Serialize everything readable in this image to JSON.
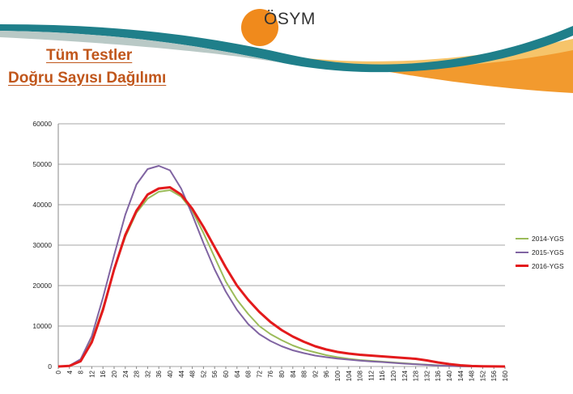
{
  "header": {
    "logo_text": "ÖSYM",
    "title_line1": "Tüm Testler",
    "title_line2": "Doğru Sayısı Dağılımı"
  },
  "colors": {
    "title": "#c0561b",
    "logo_orange": "#f08a1c",
    "swoosh_teal": "#1f7f8a",
    "swoosh_orange": "#f29a2e",
    "grid": "#a6a6a6"
  },
  "chart_data": {
    "type": "line",
    "ylim": [
      0,
      60000
    ],
    "yticks": [
      0,
      10000,
      20000,
      30000,
      40000,
      50000,
      60000
    ],
    "xlim": [
      0,
      160
    ],
    "xticks": [
      0,
      4,
      8,
      12,
      16,
      20,
      24,
      28,
      32,
      36,
      40,
      44,
      48,
      52,
      56,
      60,
      64,
      68,
      72,
      76,
      80,
      84,
      88,
      92,
      96,
      100,
      104,
      108,
      112,
      116,
      120,
      124,
      128,
      132,
      136,
      140,
      144,
      148,
      152,
      156,
      160
    ],
    "grid": "horizontal",
    "legend_position": "right",
    "x": [
      0,
      4,
      8,
      12,
      16,
      20,
      24,
      28,
      32,
      36,
      40,
      44,
      48,
      52,
      56,
      60,
      64,
      68,
      72,
      76,
      80,
      84,
      88,
      92,
      96,
      100,
      104,
      108,
      112,
      116,
      120,
      124,
      128,
      132,
      136,
      140,
      144,
      148,
      152,
      156,
      160
    ],
    "series": [
      {
        "name": "2014-YGS",
        "color": "#9bbb59",
        "width": 2,
        "values": [
          0,
          200,
          1500,
          6500,
          14500,
          24000,
          32000,
          38000,
          41500,
          43200,
          43600,
          42000,
          38500,
          33000,
          27000,
          21000,
          16500,
          13000,
          10000,
          8000,
          6500,
          5200,
          4200,
          3500,
          2800,
          2300,
          1900,
          1600,
          1400,
          1200,
          1000,
          800,
          600,
          450,
          300,
          150,
          60,
          20,
          5,
          0,
          0
        ]
      },
      {
        "name": "2015-YGS",
        "color": "#8064a2",
        "width": 2,
        "values": [
          0,
          200,
          1800,
          7500,
          17000,
          27500,
          37500,
          45000,
          48800,
          49600,
          48500,
          44000,
          37500,
          30500,
          24000,
          18500,
          14000,
          10500,
          8000,
          6300,
          5000,
          4000,
          3300,
          2700,
          2300,
          1950,
          1700,
          1450,
          1250,
          1100,
          900,
          700,
          550,
          400,
          250,
          120,
          50,
          15,
          5,
          0,
          0
        ]
      },
      {
        "name": "2016-YGS",
        "color": "#e31a1c",
        "width": 3,
        "values": [
          0,
          150,
          1300,
          6000,
          14000,
          24000,
          32500,
          38500,
          42500,
          44000,
          44300,
          42500,
          39000,
          34500,
          29500,
          24500,
          20000,
          16500,
          13500,
          11000,
          9000,
          7400,
          6100,
          5000,
          4200,
          3600,
          3200,
          2900,
          2700,
          2500,
          2300,
          2100,
          1900,
          1500,
          1000,
          600,
          300,
          120,
          40,
          10,
          0
        ]
      }
    ]
  }
}
